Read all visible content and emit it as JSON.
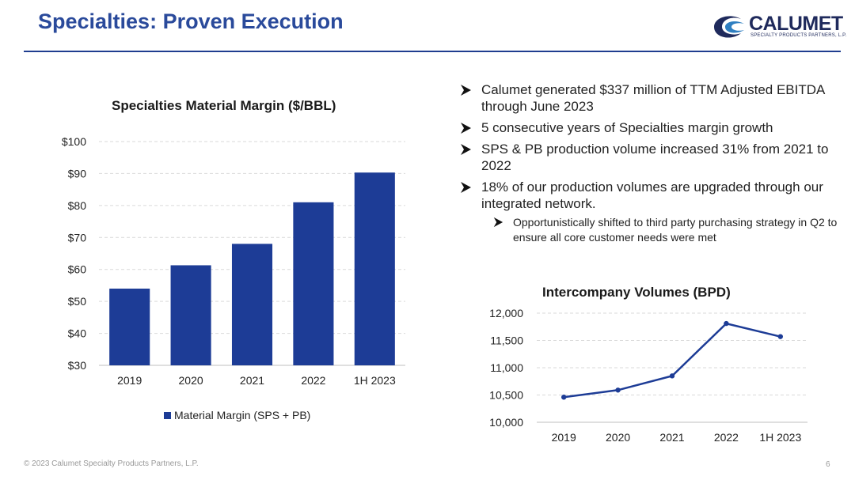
{
  "header": {
    "title": "Specialties: Proven Execution",
    "logo_text": "CALUMET",
    "logo_subtext": "SPECIALTY PRODUCTS PARTNERS, L.P."
  },
  "bullets": [
    {
      "text": "Calumet generated $337 million of TTM Adjusted EBITDA through June 2023",
      "level": 1
    },
    {
      "text": "5 consecutive years of Specialties margin growth",
      "level": 1
    },
    {
      "text": "SPS & PB production volume increased 31% from 2021 to 2022",
      "level": 1
    },
    {
      "text": "18% of our production volumes are upgraded through our integrated network.",
      "level": 1
    },
    {
      "text": "Opportunistically shifted to third party purchasing strategy in Q2 to ensure all core customer needs were met",
      "level": 2
    }
  ],
  "footer": {
    "copyright": "© 2023 Calumet Specialty Products Partners, L.P.",
    "page_number": "6"
  },
  "colors": {
    "title": "#2a4a9b",
    "rule": "#1f3d8f",
    "bar": "#1d3c96",
    "line": "#1d3c96",
    "grid": "#d9d9d9"
  },
  "chart_data": [
    {
      "type": "bar",
      "title": "Specialties Material Margin ($/BBL)",
      "categories": [
        "2019",
        "2020",
        "2021",
        "2022",
        "1H 2023"
      ],
      "series": [
        {
          "name": "Material Margin (SPS + PB)",
          "values": [
            54,
            61.3,
            68,
            81,
            90.3
          ]
        }
      ],
      "ylim": [
        30,
        100
      ],
      "yticks": [
        30,
        40,
        50,
        60,
        70,
        80,
        90,
        100
      ],
      "ytick_labels": [
        "$30",
        "$40",
        "$50",
        "$60",
        "$70",
        "$80",
        "$90",
        "$100"
      ],
      "grid": true,
      "legend": "bottom"
    },
    {
      "type": "line",
      "title": "Intercompany Volumes (BPD)",
      "categories": [
        "2019",
        "2020",
        "2021",
        "2022",
        "1H 2023"
      ],
      "series": [
        {
          "values": [
            10460,
            10590,
            10850,
            11810,
            11570
          ]
        }
      ],
      "ylim": [
        10000,
        12000
      ],
      "yticks": [
        10000,
        10500,
        11000,
        11500,
        12000
      ],
      "ytick_labels": [
        "10,000",
        "10,500",
        "11,000",
        "11,500",
        "12,000"
      ],
      "grid": true
    }
  ]
}
